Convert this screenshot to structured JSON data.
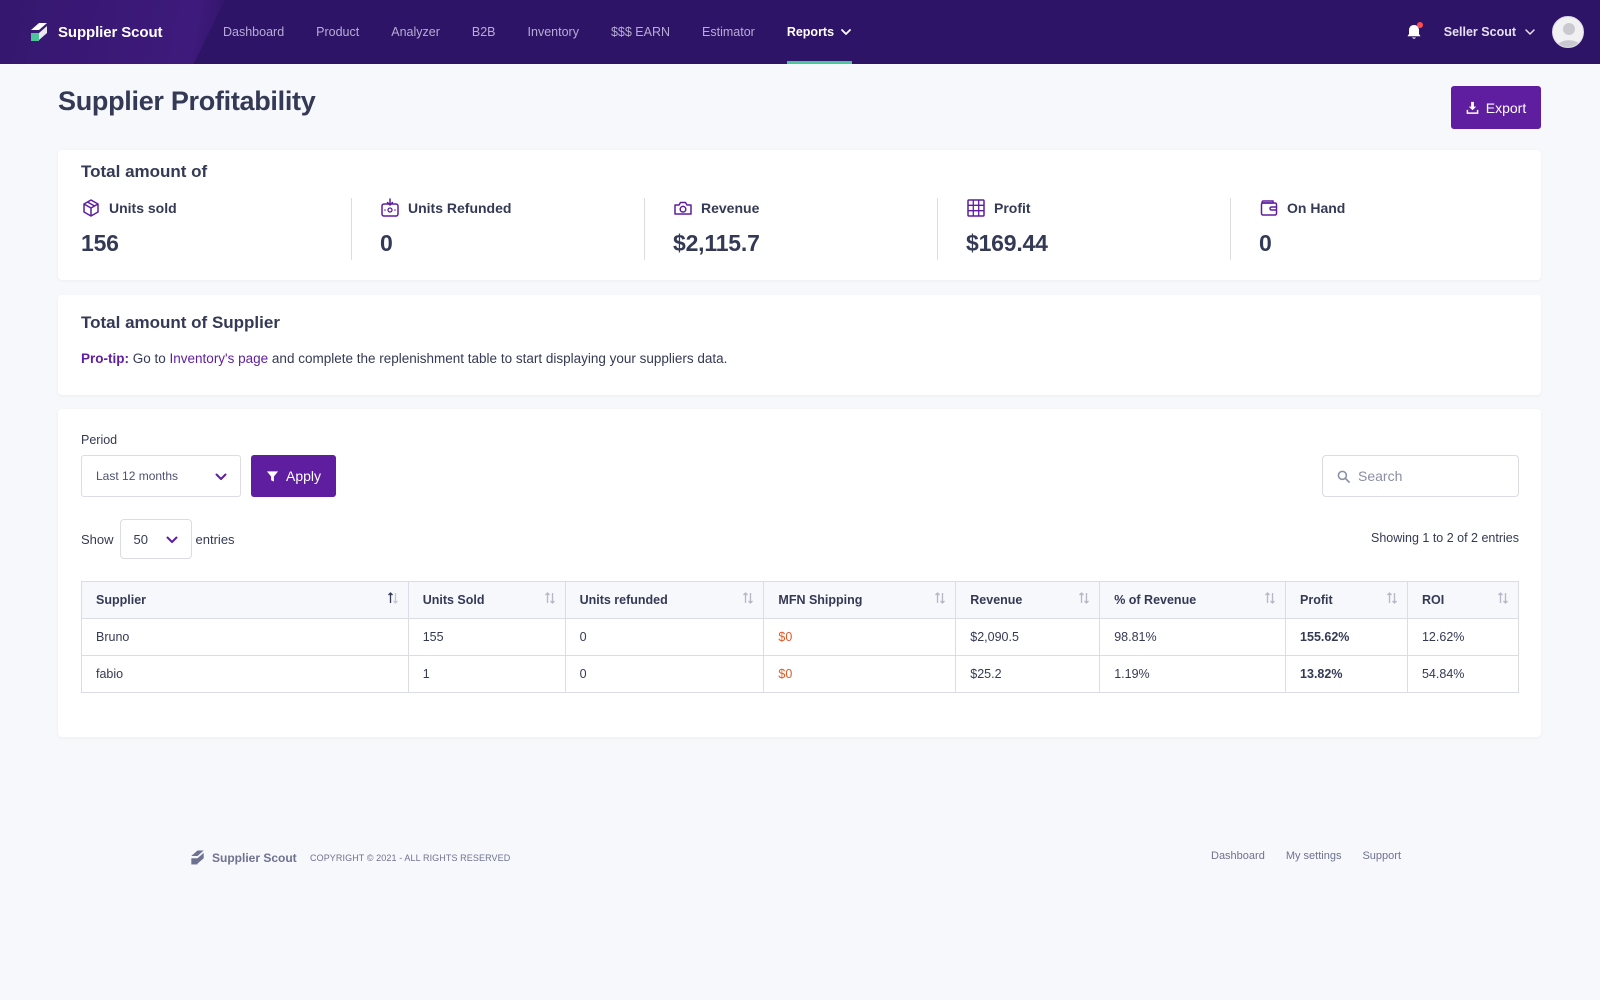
{
  "colors": {
    "nav_bg": "#2e1466",
    "accent": "#5f1d9f",
    "active_underline": "#4cc59a",
    "shipping_value": "#e05a2a"
  },
  "nav": {
    "brand": "Supplier Scout",
    "links": [
      "Dashboard",
      "Product",
      "Analyzer",
      "B2B",
      "Inventory",
      "$$$ EARN",
      "Estimator",
      "Reports"
    ],
    "active": "Reports",
    "user_name": "Seller Scout",
    "icons": {
      "brand": "supplier-scout-logo",
      "notifications": "bell-icon",
      "user_menu": "chevron-down-icon",
      "avatar": "user-avatar"
    }
  },
  "header": {
    "title": "Supplier Profitability",
    "export_label": "Export",
    "export_icon": "download-icon"
  },
  "totals": {
    "title": "Total amount of",
    "stats": [
      {
        "label": "Units sold",
        "value": "156",
        "icon": "box-icon"
      },
      {
        "label": "Units Refunded",
        "value": "0",
        "icon": "refund-icon"
      },
      {
        "label": "Revenue",
        "value": "$2,115.7",
        "icon": "camera-icon"
      },
      {
        "label": "Profit",
        "value": "$169.44",
        "icon": "grid-icon"
      },
      {
        "label": "On Hand",
        "value": "0",
        "icon": "wallet-icon"
      }
    ]
  },
  "supplier_totals": {
    "title": "Total amount of Supplier",
    "protip_label": "Pro-tip:",
    "protip_before": " Go to ",
    "protip_link": "Inventory's page",
    "protip_after": " and complete the replenishment table to start displaying your suppliers data."
  },
  "filters": {
    "period_label": "Period",
    "period_value": "Last 12 months",
    "apply_label": "Apply",
    "search_placeholder": "Search",
    "show_label": "Show",
    "entries_value": "50",
    "entries_label": "entries",
    "showing_text": "Showing 1 to 2 of 2 entries"
  },
  "table": {
    "columns": [
      "Supplier",
      "Units Sold",
      "Units refunded",
      "MFN Shipping",
      "Revenue",
      "% of Revenue",
      "Profit",
      "ROI"
    ],
    "rows": [
      [
        "Bruno",
        "155",
        "0",
        "$0",
        "$2,090.5",
        "98.81%",
        "155.62%",
        "12.62%"
      ],
      [
        "fabio",
        "1",
        "0",
        "$0",
        "$25.2",
        "1.19%",
        "13.82%",
        "54.84%"
      ]
    ]
  },
  "footer": {
    "brand": "Supplier Scout",
    "copyright": "COPYRIGHT © 2021 - ALL RIGHTS RESERVED",
    "links": [
      "Dashboard",
      "My settings",
      "Support"
    ]
  }
}
